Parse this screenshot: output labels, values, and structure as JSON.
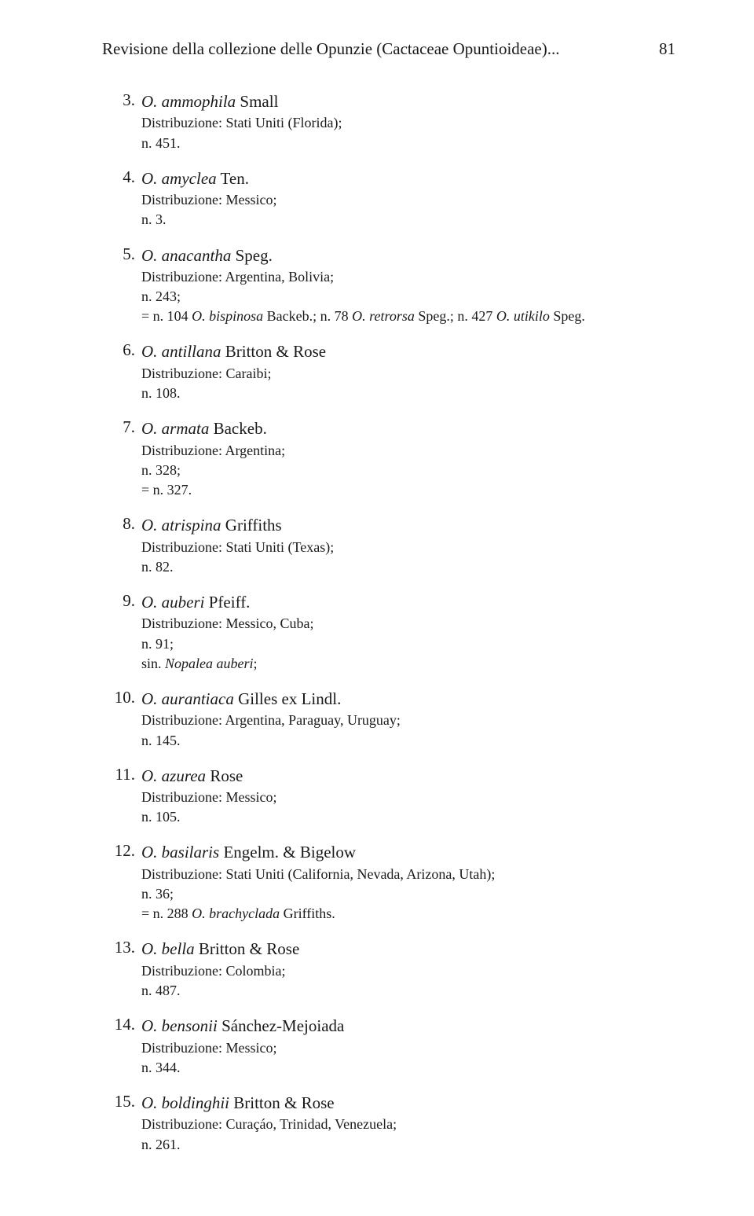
{
  "header": {
    "running_title": "Revisione della collezione delle Opunzie (Cactaceae Opuntioideae)...",
    "page_number": "81"
  },
  "entries": [
    {
      "num": "3.",
      "genus": "O.",
      "epithet": "ammophila",
      "author": "Small",
      "details": [
        {
          "text": "Distribuzione: Stati Uniti (Florida);"
        },
        {
          "text": "n. 451."
        }
      ]
    },
    {
      "num": "4.",
      "genus": "O.",
      "epithet": "amyclea",
      "author": "Ten.",
      "details": [
        {
          "text": "Distribuzione: Messico;"
        },
        {
          "text": "n. 3."
        }
      ]
    },
    {
      "num": "5.",
      "genus": "O.",
      "epithet": "anacantha",
      "author": "Speg.",
      "details": [
        {
          "text": "Distribuzione: Argentina, Bolivia;"
        },
        {
          "text": "n. 243;"
        },
        {
          "prefix": "= n. 104 ",
          "ital": "O. bispinosa",
          "mid": " Backeb.; n. 78 ",
          "ital2": "O. retrorsa",
          "mid2": " Speg.; n. 427 ",
          "ital3": "O. utikilo",
          "suffix": " Speg."
        }
      ]
    },
    {
      "num": "6.",
      "genus": "O.",
      "epithet": "antillana",
      "author": "Britton & Rose",
      "details": [
        {
          "text": "Distribuzione: Caraibi;"
        },
        {
          "text": "n. 108."
        }
      ]
    },
    {
      "num": "7.",
      "genus": "O.",
      "epithet": "armata",
      "author": "Backeb.",
      "details": [
        {
          "text": "Distribuzione: Argentina;"
        },
        {
          "text": "n. 328;"
        },
        {
          "text": "= n. 327."
        }
      ]
    },
    {
      "num": "8.",
      "genus": "O.",
      "epithet": "atrispina",
      "author": "Griffiths",
      "details": [
        {
          "text": "Distribuzione: Stati Uniti (Texas);"
        },
        {
          "text": "n. 82."
        }
      ]
    },
    {
      "num": "9.",
      "genus": "O.",
      "epithet": "auberi",
      "author": "Pfeiff.",
      "details": [
        {
          "text": "Distribuzione: Messico, Cuba;"
        },
        {
          "text": "n. 91;"
        },
        {
          "prefix": "sin. ",
          "ital": "Nopalea auberi",
          "suffix": ";"
        }
      ]
    },
    {
      "num": "10.",
      "genus": "O.",
      "epithet": "aurantiaca",
      "author": "Gilles ex Lindl.",
      "details": [
        {
          "text": "Distribuzione: Argentina, Paraguay, Uruguay;"
        },
        {
          "text": "n. 145."
        }
      ]
    },
    {
      "num": "11.",
      "genus": "O.",
      "epithet": "azurea",
      "author": "Rose",
      "details": [
        {
          "text": "Distribuzione: Messico;"
        },
        {
          "text": "n. 105."
        }
      ]
    },
    {
      "num": "12.",
      "genus": "O.",
      "epithet": "basilaris",
      "author": "Engelm. & Bigelow",
      "details": [
        {
          "text": "Distribuzione: Stati Uniti (California, Nevada, Arizona, Utah);"
        },
        {
          "text": "n. 36;"
        },
        {
          "prefix": "= n. 288 ",
          "ital": "O. brachyclada",
          "suffix": " Griffiths."
        }
      ]
    },
    {
      "num": "13.",
      "genus": "O.",
      "epithet": "bella",
      "author": "Britton & Rose",
      "details": [
        {
          "text": "Distribuzione: Colombia;"
        },
        {
          "text": "n. 487."
        }
      ]
    },
    {
      "num": "14.",
      "genus": "O.",
      "epithet": "bensonii",
      "author": "Sánchez-Mejoiada",
      "details": [
        {
          "text": "Distribuzione: Messico;"
        },
        {
          "text": "n. 344."
        }
      ]
    },
    {
      "num": "15.",
      "genus": "O.",
      "epithet": "boldinghii",
      "author": "Britton & Rose",
      "details": [
        {
          "text": "Distribuzione: Curaçáo, Trinidad, Venezuela;"
        },
        {
          "text": "n. 261."
        }
      ]
    }
  ]
}
